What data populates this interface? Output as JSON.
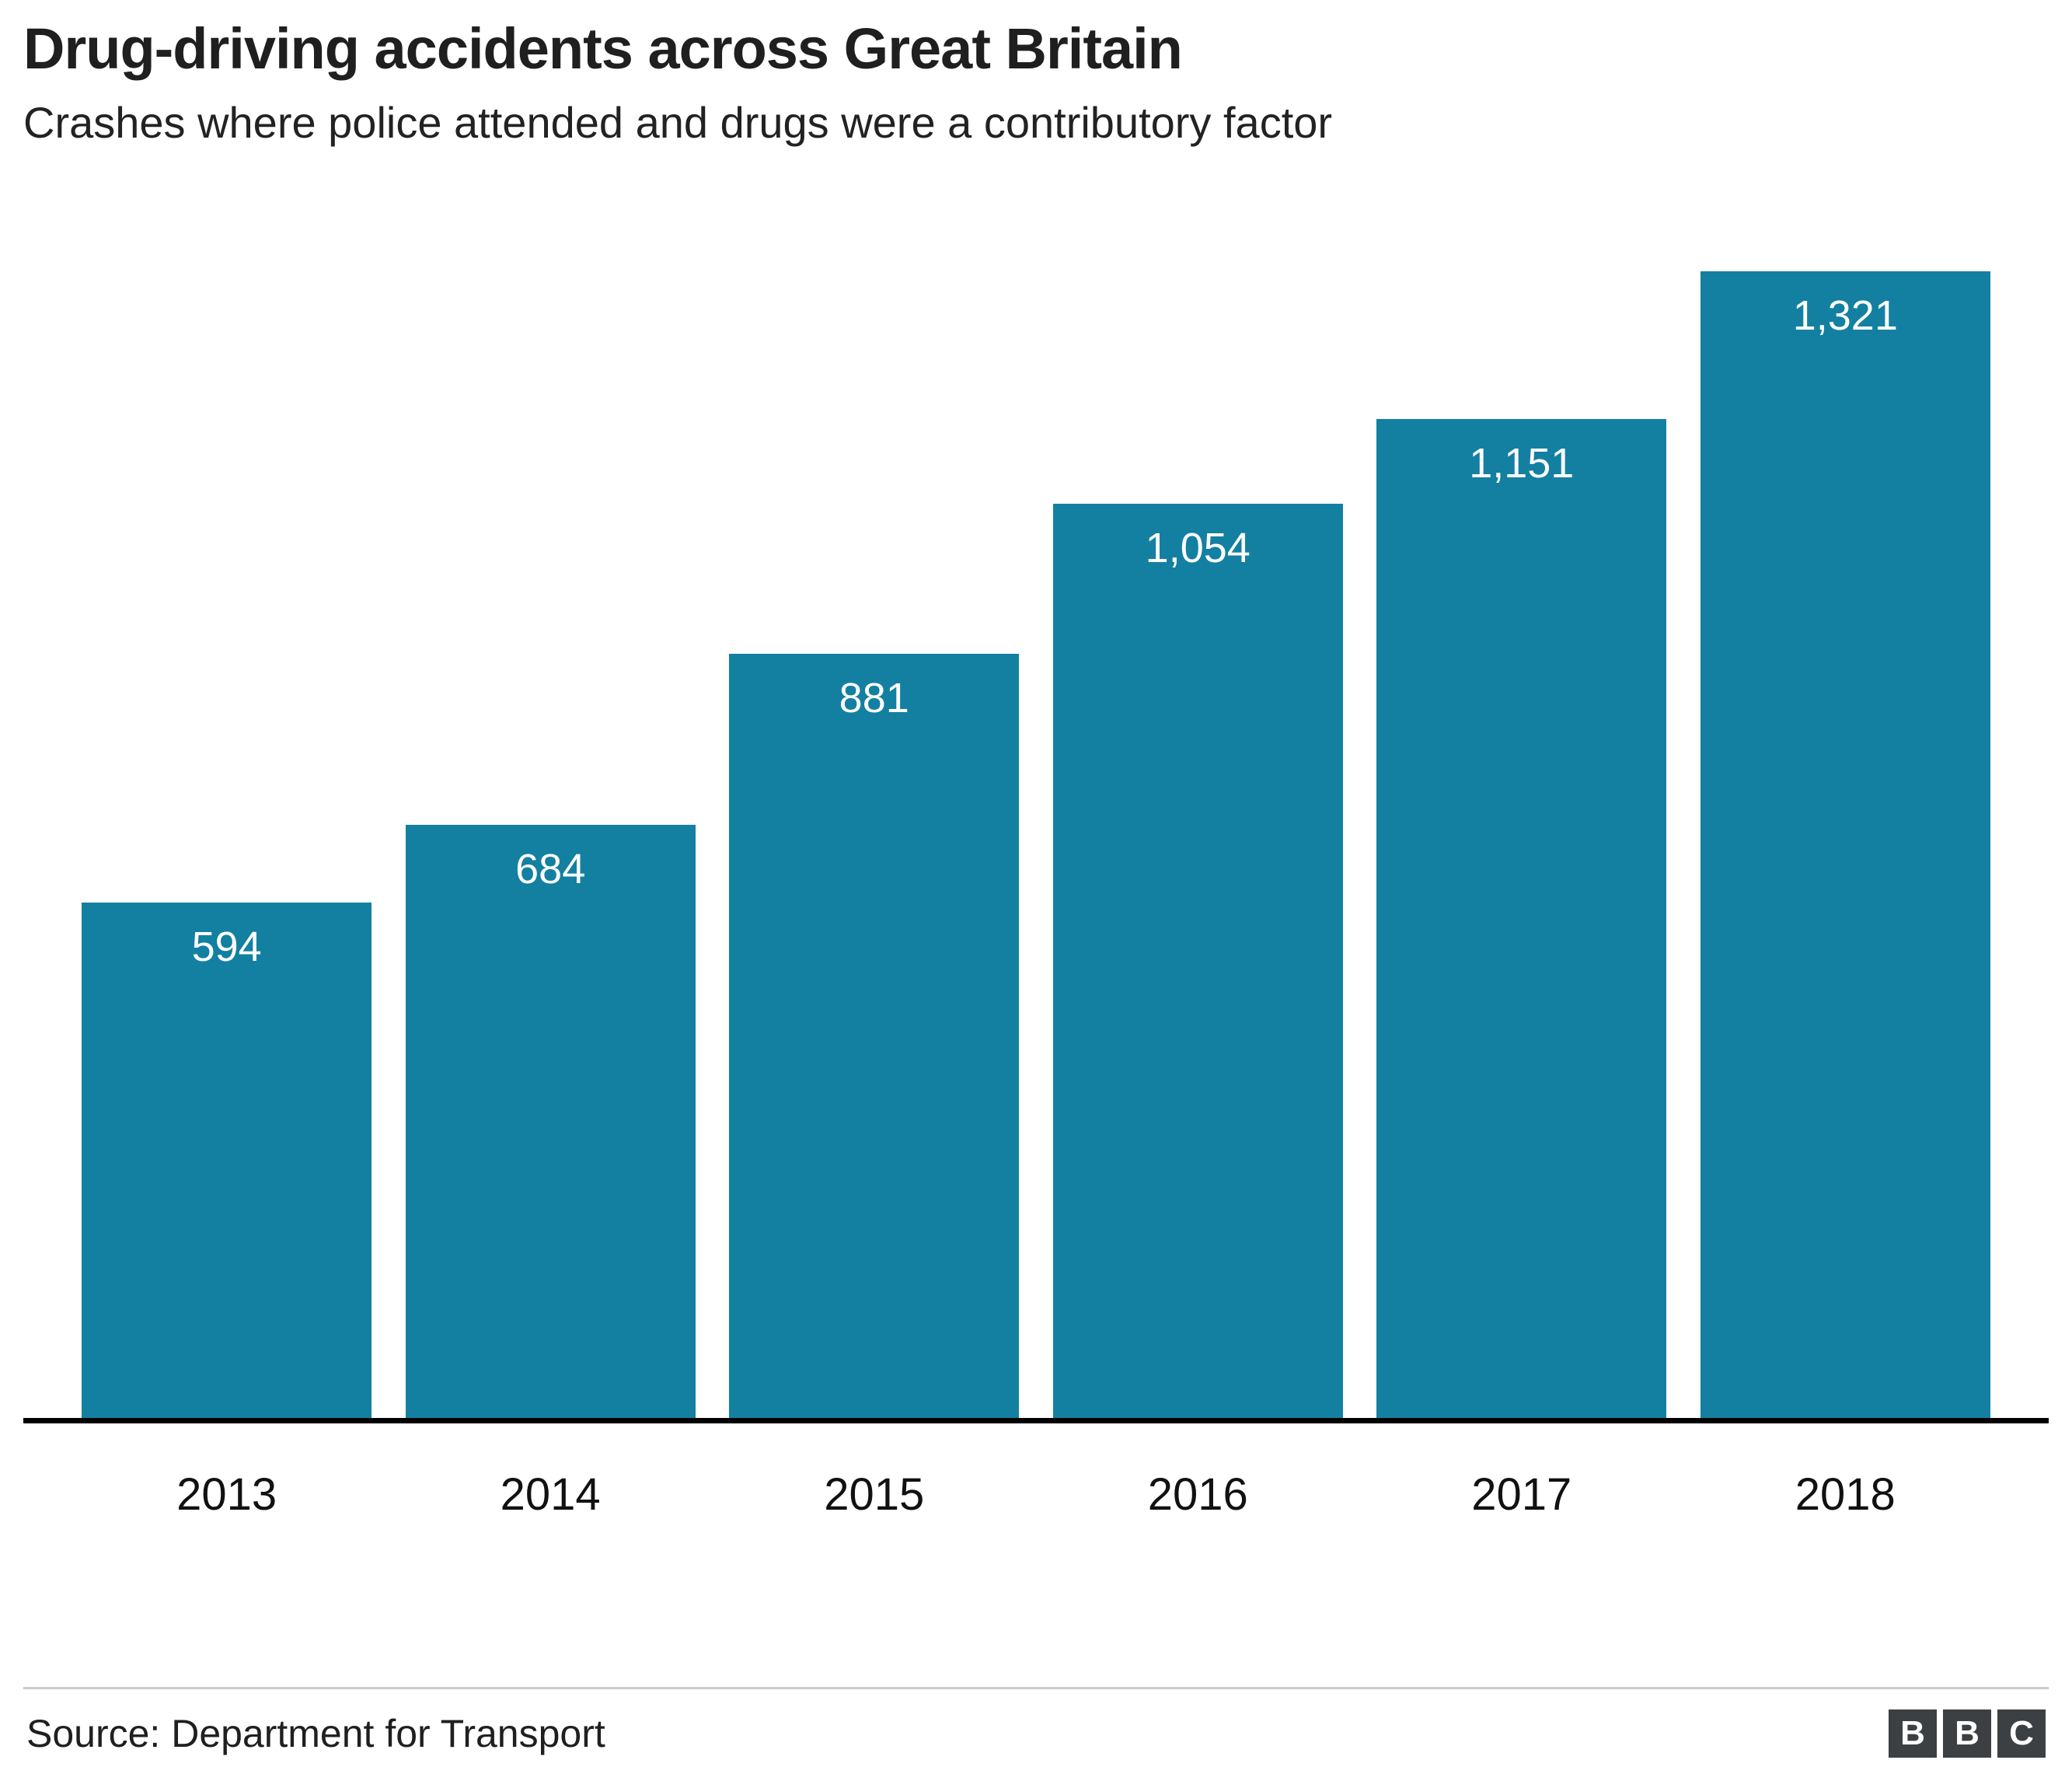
{
  "chart_data": {
    "type": "bar",
    "title": "Drug-driving accidents across Great Britain",
    "subtitle": "Crashes where police attended and drugs were a contributory factor",
    "categories": [
      "2013",
      "2014",
      "2015",
      "2016",
      "2017",
      "2018"
    ],
    "values": [
      594,
      684,
      881,
      1054,
      1151,
      1321
    ],
    "value_labels": [
      "594",
      "684",
      "881",
      "1,054",
      "1,151",
      "1,321"
    ],
    "bar_color": "#1380A1",
    "value_label_color": "#ffffff",
    "axis_line_color": "#000000",
    "ylim": [
      0,
      1321
    ],
    "grid": false,
    "legend": "none"
  },
  "footer": {
    "source": "Source: Department for Transport",
    "logo_letters": [
      "B",
      "B",
      "C"
    ]
  }
}
